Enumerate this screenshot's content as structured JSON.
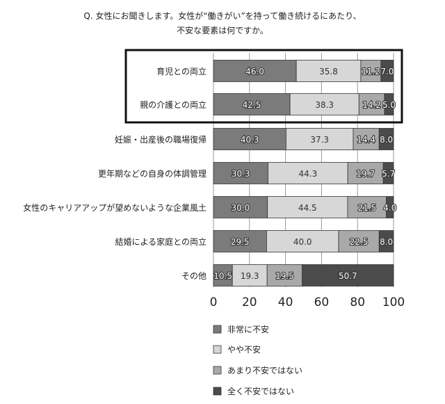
{
  "chart_data": {
    "type": "bar",
    "orientation": "horizontal",
    "stacked": true,
    "title": [
      "Q. 女性にお聞きします。女性が“働きがい”を持って働き続けるにあたり、",
      "不安な要素は何ですか。"
    ],
    "categories": [
      "育児との両立",
      "親の介護との両立",
      "妊娠・出産後の職場復帰",
      "更年期などの自身の体調管理",
      "女性のキャリアアップが望めないような企業風土",
      "結婚による家庭との両立",
      "その他"
    ],
    "highlighted_categories": [
      "育児との両立",
      "親の介護との両立"
    ],
    "series": [
      {
        "name": "非常に不安",
        "color": "#7b7b7b",
        "values": [
          46.0,
          42.5,
          40.3,
          30.3,
          30.0,
          29.5,
          10.5
        ]
      },
      {
        "name": "やや不安",
        "color": "#d7d7d7",
        "values": [
          35.8,
          38.3,
          37.3,
          44.3,
          44.5,
          40.0,
          19.3
        ]
      },
      {
        "name": "あまり不安ではない",
        "color": "#a9a9a9",
        "values": [
          11.2,
          14.2,
          14.4,
          19.7,
          21.5,
          22.5,
          19.5
        ]
      },
      {
        "name": "全く不安ではない",
        "color": "#4b4b4b",
        "values": [
          7.0,
          5.0,
          8.0,
          5.7,
          4.0,
          8.0,
          50.7
        ]
      }
    ],
    "xlim": [
      0,
      100
    ],
    "xticks": [
      0,
      20,
      40,
      60,
      80,
      100
    ],
    "grid": true,
    "legend_position": "bottom"
  }
}
